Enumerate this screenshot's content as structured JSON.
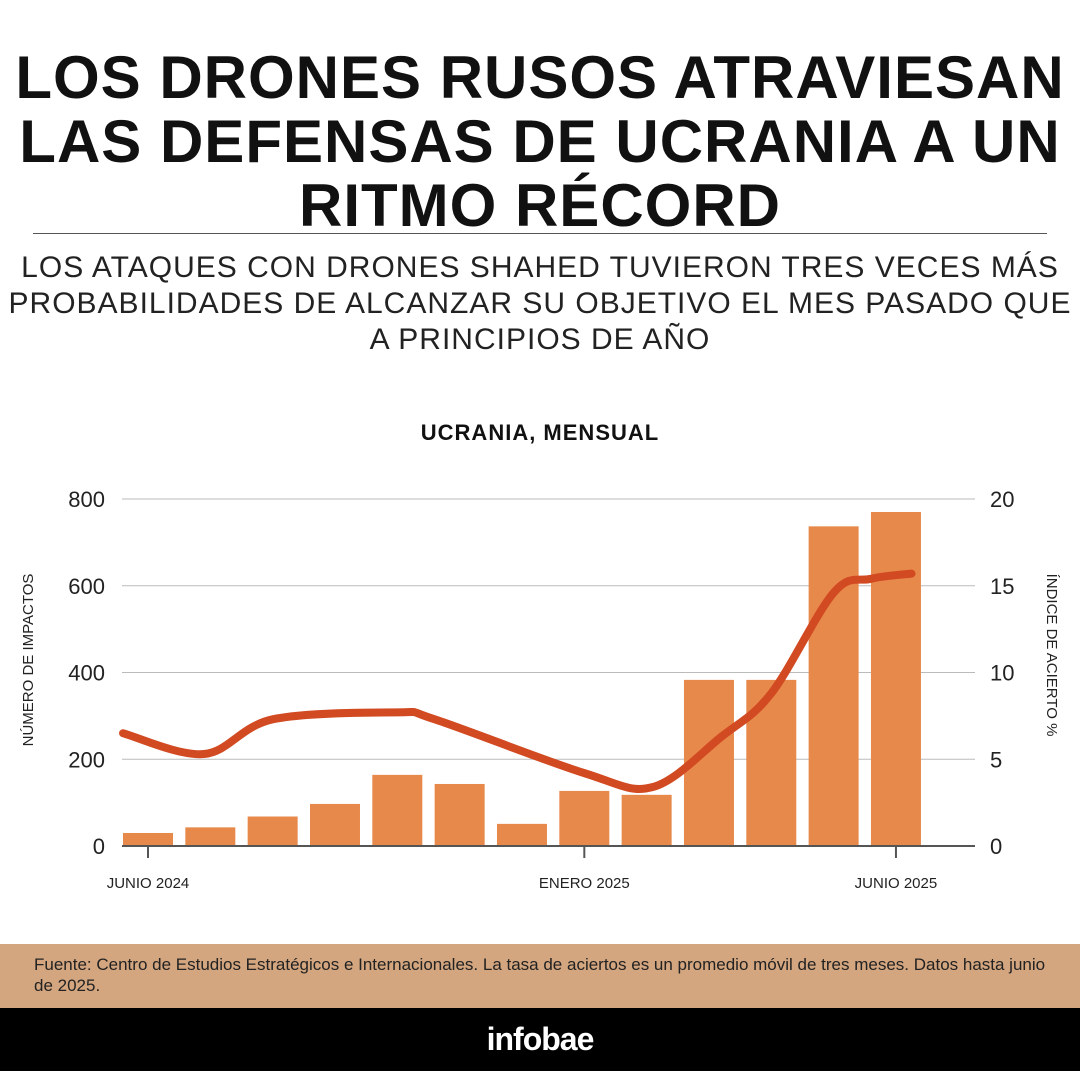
{
  "header": {
    "title": "LOS DRONES RUSOS ATRAVIESAN LAS DEFENSAS DE UCRANIA A UN RITMO RÉCORD",
    "subtitle": "LOS ATAQUES CON DRONES SHAHED TUVIERON TRES VECES MÁS PROBABILIDADES DE ALCANZAR SU OBJETIVO EL MES PASADO QUE A PRINCIPIOS DE AÑO"
  },
  "chart_data": {
    "type": "bar",
    "title": "UCRANIA, MENSUAL",
    "ylabel": "NÚMERO DE IMPACTOS",
    "y2label": "ÍNDICE DE ACIERTO %",
    "ylim": [
      0,
      800
    ],
    "y2lim": [
      0,
      20
    ],
    "yticks": [
      0,
      200,
      400,
      600,
      800
    ],
    "y2ticks": [
      0,
      5,
      10,
      15,
      20
    ],
    "xticks": [
      {
        "index": 0,
        "label": "JUNIO 2024"
      },
      {
        "index": 7,
        "label": "ENERO 2025"
      },
      {
        "index": 12,
        "label": "JUNIO 2025"
      }
    ],
    "categories": [
      "2024-06",
      "2024-07",
      "2024-08",
      "2024-09",
      "2024-10",
      "2024-11",
      "2024-12",
      "2025-01",
      "2025-02",
      "2025-03",
      "2025-04",
      "2025-05",
      "2025-06"
    ],
    "series": [
      {
        "name": "Impactos",
        "type": "bar",
        "color": "#e8894c",
        "values": [
          30,
          43,
          68,
          97,
          164,
          143,
          51,
          127,
          118,
          383,
          383,
          737,
          770
        ]
      },
      {
        "name": "Índice de acierto (promedio móvil 3 meses)",
        "type": "line",
        "color": "#d24a22",
        "axis": "right",
        "points": [
          [
            -0.4,
            6.5
          ],
          [
            0.9,
            5.3
          ],
          [
            2,
            7.3
          ],
          [
            4,
            7.7
          ],
          [
            4.6,
            7.3
          ],
          [
            7,
            4.2
          ],
          [
            8.1,
            3.4
          ],
          [
            9.2,
            6.3
          ],
          [
            10,
            8.8
          ],
          [
            11,
            14.6
          ],
          [
            11.6,
            15.4
          ],
          [
            12.25,
            15.7
          ]
        ]
      }
    ],
    "grid": true
  },
  "footer": {
    "source": "Fuente: Centro de Estudios Estratégicos e Internacionales. La tasa de aciertos es un promedio móvil de tres meses. Datos hasta junio de 2025.",
    "brand": "infobae"
  }
}
